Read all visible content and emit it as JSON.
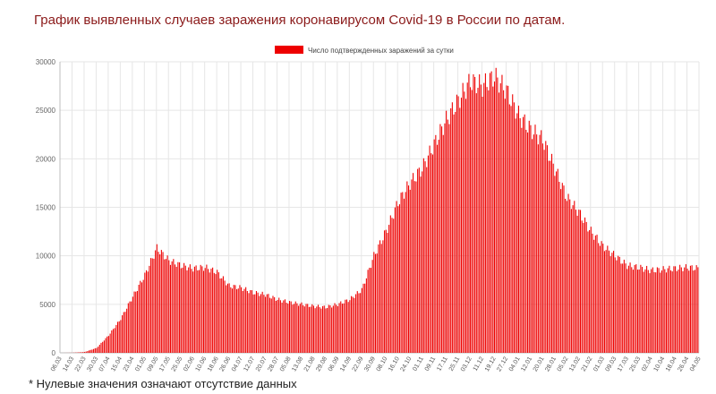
{
  "page": {
    "title": "График выявленных случаев заражения коронавирусом Covid-19 в России по датам.",
    "footnote": "* Нулевые значения означают отсутствие данных"
  },
  "colors": {
    "bar": "#ee0000",
    "title": "#8b1a1a",
    "grid": "#e6e6e6"
  },
  "chart_data": {
    "type": "bar",
    "title": "",
    "xlabel": "",
    "ylabel": "",
    "legend": {
      "label": "Число подтвержденных заражений за сутки",
      "placement": "top-center"
    },
    "grid": true,
    "ylim": [
      0,
      30000
    ],
    "yticks": [
      0,
      5000,
      10000,
      15000,
      20000,
      25000,
      30000
    ],
    "series": [
      {
        "name": "Число подтвержденных заражений за сутки",
        "dates": [
          "06.03",
          "14.03",
          "22.03",
          "30.03",
          "07.04",
          "15.04",
          "23.04",
          "01.05",
          "09.05",
          "17.05",
          "25.05",
          "02.06",
          "10.06",
          "18.06",
          "26.06",
          "04.07",
          "12.07",
          "20.07",
          "28.07",
          "05.08",
          "13.08",
          "21.08",
          "29.08",
          "06.09",
          "14.09",
          "22.09",
          "30.09",
          "08.10",
          "16.10",
          "24.10",
          "01.11",
          "09.11",
          "17.11",
          "25.11",
          "03.12",
          "11.12",
          "19.12",
          "27.12",
          "04.01",
          "12.01",
          "20.01",
          "28.01",
          "05.02",
          "13.02",
          "21.02",
          "01.03",
          "09.03",
          "17.03",
          "25.03",
          "02.04",
          "10.04",
          "18.04",
          "26.04",
          "04.05"
        ],
        "values": [
          0,
          10,
          80,
          500,
          1800,
          3500,
          5800,
          8000,
          10800,
          9500,
          9000,
          8700,
          8800,
          8300,
          6900,
          6700,
          6200,
          6000,
          5500,
          5200,
          5000,
          4800,
          4700,
          5000,
          5500,
          6500,
          10000,
          12500,
          15500,
          17500,
          19000,
          21500,
          24000,
          26000,
          28000,
          27500,
          28500,
          27000,
          24500,
          23000,
          22000,
          19000,
          16000,
          14500,
          12500,
          11000,
          10000,
          9000,
          8800,
          8500,
          8600,
          8700,
          8800,
          8700
        ]
      }
    ]
  }
}
